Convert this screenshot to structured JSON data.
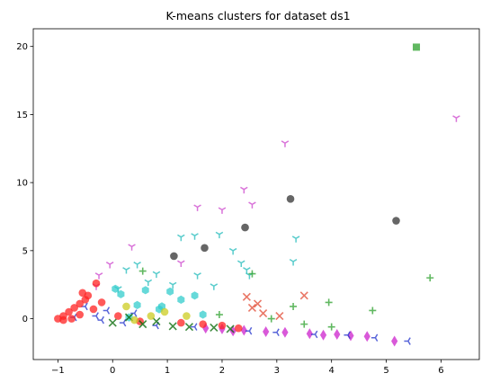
{
  "chart_data": {
    "type": "scatter",
    "title": "K-means clusters for dataset ds1",
    "xlabel": "",
    "ylabel": "",
    "xlim": [
      -1.45,
      6.7
    ],
    "ylim": [
      -3.0,
      21.3
    ],
    "xticks": [
      -1,
      0,
      1,
      2,
      3,
      4,
      5,
      6
    ],
    "yticks": [
      0,
      5,
      10,
      15,
      20
    ],
    "grid": false,
    "legend": "none",
    "series": [
      {
        "marker": "square",
        "color": "#2ca02c",
        "values": [
          [
            5.55,
            19.95
          ]
        ]
      },
      {
        "marker": "circle",
        "color": "#333333",
        "values": [
          [
            1.12,
            4.6
          ],
          [
            1.68,
            5.2
          ],
          [
            2.42,
            6.7
          ],
          [
            3.25,
            8.8
          ],
          [
            5.18,
            7.2
          ]
        ]
      },
      {
        "marker": "tri_down",
        "color": "#cc44cc",
        "values": [
          [
            6.28,
            14.75
          ],
          [
            3.15,
            12.9
          ],
          [
            2.4,
            9.5
          ],
          [
            1.55,
            8.2
          ],
          [
            2.0,
            8.0
          ],
          [
            0.35,
            5.3
          ],
          [
            1.25,
            4.1
          ],
          [
            2.55,
            8.4
          ],
          [
            -0.05,
            4.0
          ],
          [
            -0.25,
            3.2
          ],
          [
            -0.3,
            2.4
          ]
        ]
      },
      {
        "marker": "tri_down",
        "color": "#22bbbb",
        "values": [
          [
            1.25,
            6.0
          ],
          [
            1.5,
            6.1
          ],
          [
            1.95,
            6.2
          ],
          [
            2.2,
            5.0
          ],
          [
            2.35,
            4.1
          ],
          [
            2.45,
            3.6
          ],
          [
            3.3,
            4.2
          ],
          [
            3.35,
            5.9
          ],
          [
            0.45,
            4.0
          ],
          [
            0.25,
            3.6
          ],
          [
            0.8,
            3.3
          ],
          [
            1.55,
            3.2
          ],
          [
            0.65,
            2.7
          ],
          [
            1.1,
            2.5
          ],
          [
            0.1,
            2.2
          ],
          [
            1.85,
            2.4
          ],
          [
            2.5,
            3.2
          ]
        ]
      },
      {
        "marker": "plus",
        "color": "#2ca02c",
        "values": [
          [
            5.8,
            3.0
          ],
          [
            2.55,
            3.3
          ],
          [
            3.3,
            0.9
          ],
          [
            3.95,
            1.2
          ],
          [
            4.75,
            0.6
          ],
          [
            3.5,
            -0.4
          ],
          [
            0.55,
            3.5
          ],
          [
            4.0,
            -0.6
          ],
          [
            2.9,
            0.0
          ],
          [
            1.95,
            0.3
          ]
        ]
      },
      {
        "marker": "x",
        "color": "#e24a33",
        "values": [
          [
            3.5,
            1.7
          ],
          [
            2.55,
            0.8
          ],
          [
            2.65,
            1.1
          ],
          [
            2.75,
            0.4
          ],
          [
            2.45,
            1.6
          ],
          [
            3.05,
            0.2
          ]
        ]
      },
      {
        "marker": "hexagon",
        "color": "#33cccc",
        "values": [
          [
            0.15,
            1.8
          ],
          [
            0.45,
            1.0
          ],
          [
            0.85,
            0.7
          ],
          [
            1.25,
            1.4
          ],
          [
            1.5,
            1.7
          ],
          [
            0.6,
            2.1
          ],
          [
            1.05,
            2.0
          ],
          [
            0.05,
            2.2
          ],
          [
            0.9,
            0.9
          ],
          [
            1.65,
            0.3
          ],
          [
            0.3,
            0.1
          ]
        ]
      },
      {
        "marker": "diamond",
        "color": "#cc22cc",
        "values": [
          [
            5.15,
            -1.65
          ],
          [
            4.65,
            -1.3
          ],
          [
            4.1,
            -1.15
          ],
          [
            3.6,
            -1.1
          ],
          [
            3.15,
            -1.0
          ],
          [
            2.8,
            -0.95
          ],
          [
            2.4,
            -0.85
          ],
          [
            2.0,
            -0.75
          ],
          [
            1.7,
            -0.7
          ],
          [
            3.85,
            -1.2
          ],
          [
            4.35,
            -1.25
          ],
          [
            2.2,
            -0.9
          ]
        ]
      },
      {
        "marker": "tri_left",
        "color": "#2233cc",
        "values": [
          [
            5.4,
            -1.65
          ],
          [
            4.8,
            -1.4
          ],
          [
            4.3,
            -1.2
          ],
          [
            3.7,
            -1.15
          ],
          [
            3.0,
            -1.0
          ],
          [
            2.5,
            -0.9
          ],
          [
            1.5,
            -0.6
          ],
          [
            0.8,
            -0.5
          ],
          [
            0.2,
            -0.3
          ],
          [
            -0.3,
            0.2
          ],
          [
            -0.5,
            0.9
          ],
          [
            -0.1,
            0.6
          ],
          [
            0.4,
            0.4
          ],
          [
            -0.7,
            0.1
          ],
          [
            -0.2,
            -0.1
          ]
        ]
      },
      {
        "marker": "circle",
        "color": "#ff2222",
        "values": [
          [
            -1.0,
            0.0
          ],
          [
            -0.9,
            0.2
          ],
          [
            -0.8,
            0.5
          ],
          [
            -0.7,
            0.8
          ],
          [
            -0.6,
            1.1
          ],
          [
            -0.5,
            1.4
          ],
          [
            -0.45,
            1.7
          ],
          [
            -0.3,
            2.6
          ],
          [
            -0.9,
            -0.1
          ],
          [
            -0.6,
            0.3
          ],
          [
            -0.35,
            0.7
          ],
          [
            0.1,
            0.2
          ],
          [
            0.5,
            -0.2
          ],
          [
            1.25,
            -0.3
          ],
          [
            1.65,
            -0.4
          ],
          [
            2.0,
            -0.5
          ],
          [
            2.3,
            -0.7
          ],
          [
            -0.75,
            0.0
          ],
          [
            -0.2,
            1.2
          ],
          [
            -0.55,
            1.9
          ]
        ]
      },
      {
        "marker": "x",
        "color": "#006600",
        "values": [
          [
            0.0,
            -0.3
          ],
          [
            0.55,
            -0.4
          ],
          [
            1.1,
            -0.55
          ],
          [
            1.4,
            -0.6
          ],
          [
            1.85,
            -0.65
          ],
          [
            2.15,
            -0.75
          ],
          [
            0.8,
            -0.2
          ],
          [
            0.3,
            0.1
          ]
        ]
      },
      {
        "marker": "circle",
        "color": "#cccc22",
        "values": [
          [
            0.95,
            0.5
          ],
          [
            0.7,
            0.2
          ],
          [
            1.35,
            0.2
          ],
          [
            0.25,
            0.9
          ],
          [
            0.4,
            -0.1
          ]
        ]
      }
    ]
  }
}
